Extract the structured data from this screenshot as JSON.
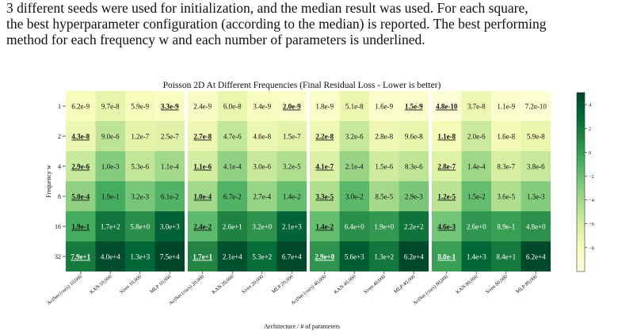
{
  "caption": {
    "lines": [
      "3 different seeds were used for initialization, and the median result was used.  For each square,",
      "the best hyperparameter configuration (according to the median) is reported. The best performing",
      "method for each frequency w and each number of parameters is underlined."
    ]
  },
  "chart_data": {
    "type": "heatmap",
    "title": "Poisson 2D At Different Frequencies (Final Residual Loss - Lower is better)",
    "xlabel": "Architecture / # of parameters",
    "ylabel": "Frequency w",
    "color_scale": "log10 of residual loss, yellow (low) to dark green (high)",
    "colorbar": {
      "ticks": [
        "4",
        "2",
        "0",
        "−2",
        "−4",
        "−6",
        "−8"
      ],
      "range": [
        -10,
        5
      ]
    },
    "colors": {
      "low": "#ffffe5",
      "mid": "#78c679",
      "high": "#004529",
      "separator": "#ffffff"
    },
    "groups": [
      10000,
      20000,
      40000,
      80000
    ],
    "rows": [
      "1",
      "2",
      "4",
      "8",
      "16",
      "32"
    ],
    "columns": [
      "ActNet (ours) 10,000",
      "KAN 10,000",
      "Siren 10,000",
      "MLP 10,000",
      "ActNet (ours) 20,000",
      "KAN 20,000",
      "Siren 20,000",
      "MLP 20,000",
      "ActNet (ours) 40,000",
      "KAN 40,000",
      "Siren 40,000",
      "MLP 40,000",
      "ActNet (ours) 80,000",
      "KAN 80,000",
      "Siren 80,000",
      "MLP 80,000"
    ],
    "values": [
      [
        "6.2e-9",
        "9.7e-8",
        "5.9e-9",
        "3.3e-9",
        "2.4e-9",
        "6.0e-8",
        "3.4e-9",
        "2.0e-9",
        "1.8e-9",
        "5.1e-8",
        "1.6e-9",
        "1.5e-9",
        "4.8e-10",
        "3.7e-8",
        "1.1e-9",
        "7.2e-10"
      ],
      [
        "4.3e-8",
        "9.0e-6",
        "1.2e-7",
        "2.5e-7",
        "2.7e-8",
        "4.7e-6",
        "4.6e-8",
        "1.5e-7",
        "2.2e-8",
        "3.2e-6",
        "2.8e-8",
        "9.6e-8",
        "1.1e-8",
        "2.0e-6",
        "1.6e-8",
        "5.9e-8"
      ],
      [
        "2.9e-6",
        "1.0e-3",
        "5.3e-6",
        "1.1e-4",
        "1.1e-6",
        "4.1e-4",
        "3.0e-6",
        "3.2e-5",
        "4.1e-7",
        "2.1e-4",
        "1.5e-6",
        "8.3e-6",
        "2.8e-7",
        "1.4e-4",
        "8.3e-7",
        "3.8e-6"
      ],
      [
        "5.0e-4",
        "1.9e-1",
        "3.2e-3",
        "6.1e-2",
        "1.0e-4",
        "6.7e-2",
        "2.7e-4",
        "1.4e-2",
        "3.3e-5",
        "3.0e-2",
        "8.5e-5",
        "2.9e-3",
        "1.2e-5",
        "1.5e-2",
        "3.6e-5",
        "1.3e-3"
      ],
      [
        "1.9e-1",
        "1.7e+2",
        "5.8e+0",
        "3.0e+3",
        "2.4e-2",
        "2.6e+1",
        "3.2e+0",
        "2.1e+3",
        "1.4e-2",
        "6.4e+0",
        "1.9e+0",
        "2.2e+2",
        "4.6e-3",
        "2.6e+0",
        "8.9e-1",
        "4.8e+0"
      ],
      [
        "7.9e+1",
        "4.0e+4",
        "1.3e+3",
        "7.5e+4",
        "1.7e+1",
        "2.1e+4",
        "5.3e+2",
        "6.7e+4",
        "2.9e+0",
        "5.6e+3",
        "1.3e+2",
        "6.2e+4",
        "8.0e-1",
        "1.4e+3",
        "8.4e+1",
        "6.2e+4"
      ]
    ],
    "underlined": [
      [
        3,
        7,
        11,
        12
      ],
      [
        0,
        4,
        8,
        12
      ],
      [
        0,
        4,
        8,
        12
      ],
      [
        0,
        4,
        8,
        12
      ],
      [
        0,
        4,
        8,
        12
      ],
      [
        0,
        4,
        8,
        12
      ]
    ]
  }
}
